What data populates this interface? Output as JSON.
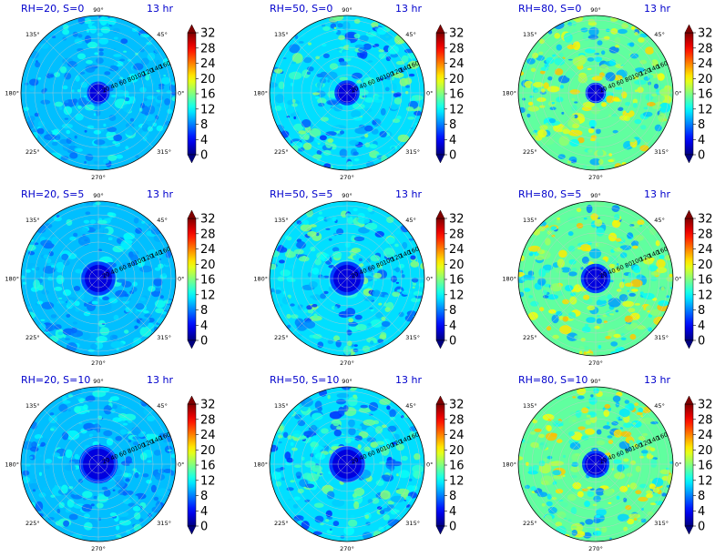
{
  "chart_data": {
    "type": "heatmap",
    "projection": "polar",
    "layout": "3x3 grid",
    "colormap": "jet",
    "color_range": [
      0,
      32
    ],
    "colorbar_ticks": [
      "0",
      "4",
      "8",
      "12",
      "16",
      "20",
      "24",
      "28",
      "32"
    ],
    "angular_ticks": [
      "0°",
      "45°",
      "90°",
      "135°",
      "180°",
      "225°",
      "270°",
      "315°"
    ],
    "radial_ticks": [
      "20",
      "40",
      "60",
      "80",
      "100",
      "120",
      "140",
      "160"
    ],
    "radial_range": [
      0,
      170
    ],
    "grid": true,
    "panels": [
      {
        "title": "RH=20, S=0",
        "time": "13 hr",
        "rh": 20,
        "s": 0,
        "mean_level": 10,
        "spread": 2.0,
        "center_value": 3,
        "center_radius": 20
      },
      {
        "title": "RH=50, S=0",
        "time": "13 hr",
        "rh": 50,
        "s": 0,
        "mean_level": 11,
        "spread": 3.5,
        "center_value": 3,
        "center_radius": 22
      },
      {
        "title": "RH=80, S=0",
        "time": "13 hr",
        "rh": 80,
        "s": 0,
        "mean_level": 15,
        "spread": 4.5,
        "center_value": 3,
        "center_radius": 18
      },
      {
        "title": "RH=20, S=5",
        "time": "13 hr",
        "rh": 20,
        "s": 5,
        "mean_level": 10,
        "spread": 2.0,
        "center_value": 3,
        "center_radius": 30
      },
      {
        "title": "RH=50, S=5",
        "time": "13 hr",
        "rh": 50,
        "s": 5,
        "mean_level": 11,
        "spread": 3.5,
        "center_value": 3,
        "center_radius": 30
      },
      {
        "title": "RH=80, S=5",
        "time": "13 hr",
        "rh": 80,
        "s": 5,
        "mean_level": 15,
        "spread": 4.5,
        "center_value": 3,
        "center_radius": 26
      },
      {
        "title": "RH=20, S=10",
        "time": "13 hr",
        "rh": 20,
        "s": 10,
        "mean_level": 10,
        "spread": 2.0,
        "center_value": 3,
        "center_radius": 34
      },
      {
        "title": "RH=50, S=10",
        "time": "13 hr",
        "rh": 50,
        "s": 10,
        "mean_level": 11,
        "spread": 3.5,
        "center_value": 3,
        "center_radius": 32
      },
      {
        "title": "RH=80, S=10",
        "time": "13 hr",
        "rh": 80,
        "s": 10,
        "mean_level": 15,
        "spread": 4.5,
        "center_value": 3,
        "center_radius": 24
      }
    ]
  }
}
